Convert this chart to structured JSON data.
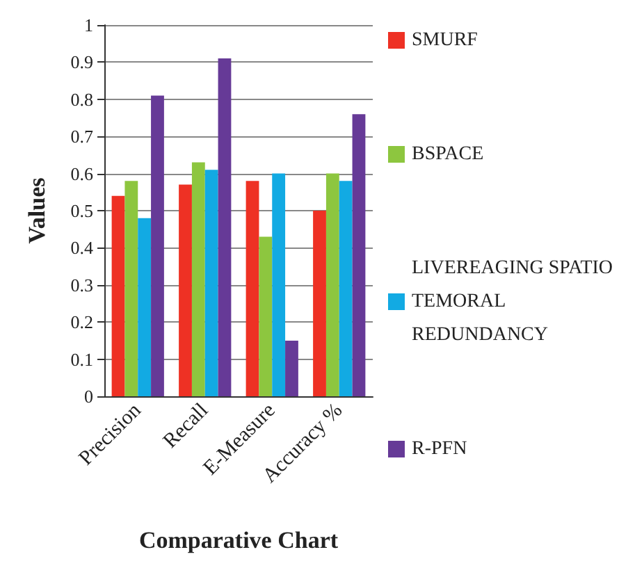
{
  "chart_data": {
    "type": "bar",
    "xlabel": "Comparative Chart",
    "ylabel": "Values",
    "categories": [
      "Precision",
      "Recall",
      "E-Measure",
      "Accuracy %"
    ],
    "series": [
      {
        "name": "SMURF",
        "color": "#ee3124",
        "values": [
          0.54,
          0.57,
          0.58,
          0.5
        ]
      },
      {
        "name": "BSPACE",
        "color": "#8dc63f",
        "values": [
          0.58,
          0.63,
          0.43,
          0.6
        ]
      },
      {
        "name": "LIVEREAGING SPATIO TEMORAL REDUNDANCY",
        "color": "#12aae3",
        "values": [
          0.48,
          0.61,
          0.6,
          0.58
        ]
      },
      {
        "name": "R-PFN",
        "color": "#663a97",
        "values": [
          0.81,
          0.91,
          0.15,
          0.76
        ]
      }
    ],
    "ylim": [
      0,
      1
    ],
    "yticks": [
      0,
      0.1,
      0.2,
      0.3,
      0.4,
      0.5,
      0.6,
      0.7,
      0.8,
      0.9,
      1
    ],
    "grid": "y",
    "legend": "right"
  }
}
